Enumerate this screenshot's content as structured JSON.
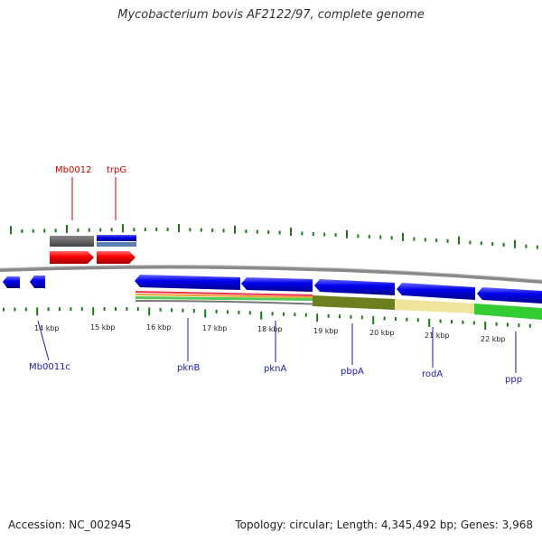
{
  "title": "Mycobacterium bovis AF2122/97, complete genome",
  "footer": {
    "accession": "Accession: NC_002945",
    "topology": "Topology: circular; Length: 4,345,492 bp; Genes: 3,968"
  },
  "scale": {
    "unit": "kbp",
    "ticks": [
      "14 kbp",
      "15 kbp",
      "16 kbp",
      "17 kbp",
      "18 kbp",
      "19 kbp",
      "20 kbp",
      "21 kbp",
      "22 kbp"
    ]
  },
  "genes": [
    {
      "name": "Mb0012",
      "strand": "forward",
      "color": "#cc0000"
    },
    {
      "name": "trpG",
      "strand": "forward",
      "color": "#cc0000"
    },
    {
      "name": "Mb0011c",
      "strand": "reverse",
      "color": "#1a1aa6"
    },
    {
      "name": "pknB",
      "strand": "reverse",
      "color": "#1a1aa6"
    },
    {
      "name": "pknA",
      "strand": "reverse",
      "color": "#1a1aa6"
    },
    {
      "name": "pbpA",
      "strand": "reverse",
      "color": "#1a1aa6"
    },
    {
      "name": "rodA",
      "strand": "reverse",
      "color": "#1a1aa6"
    },
    {
      "name": "ppp",
      "strand": "reverse",
      "color": "#1a1aa6"
    }
  ],
  "colors": {
    "forward_cds": "#ff0000",
    "reverse_cds": "#0000ee",
    "tick": "#1a7a1a",
    "backbone": "#8a8a8a",
    "gray_feature": "#666666",
    "olive_feature": "#6b7f1e",
    "tan_feature": "#efe49a",
    "green_feature": "#33cc33"
  }
}
